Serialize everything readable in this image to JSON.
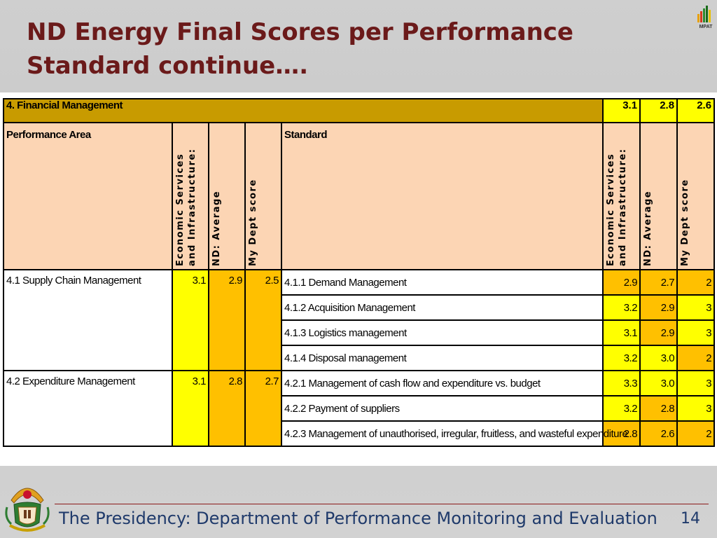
{
  "slide": {
    "title": "ND Energy Final Scores per Performance Standard continue….",
    "footer": "The Presidency: Department of Performance Monitoring and Evaluation",
    "page_number": "14",
    "logo_text": "MPAT"
  },
  "table": {
    "section": {
      "title": "4. Financial Management",
      "values": [
        "3.1",
        "2.8",
        "2.6"
      ]
    },
    "headers": {
      "performance_area": "Performance Area",
      "economic": "Economic Services and Infrastructure:",
      "nd_average": "ND: Average",
      "my_dept": "My Dept score",
      "standard": "Standard",
      "economic_2": "Economic Services and Infrastructure:",
      "nd_average_2": "ND: Average",
      "my_dept_2": "My Dept score"
    },
    "areas": [
      {
        "name": "4.1 Supply Chain Management",
        "economic": "3.1",
        "nd_average": "2.9",
        "my_dept": "2.5",
        "standards": [
          {
            "name": "4.1.1 Demand Management",
            "economic": "2.9",
            "nd_average": "2.7",
            "my_dept": "2"
          },
          {
            "name": "4.1.2 Acquisition Management",
            "economic": "3.2",
            "nd_average": "2.9",
            "my_dept": "3"
          },
          {
            "name": "4.1.3 Logistics management",
            "economic": "3.1",
            "nd_average": "2.9",
            "my_dept": "3"
          },
          {
            "name": "4.1.4 Disposal management",
            "economic": "3.2",
            "nd_average": "3.0",
            "my_dept": "2"
          }
        ]
      },
      {
        "name": "4.2 Expenditure Management",
        "economic": "3.1",
        "nd_average": "2.8",
        "my_dept": "2.7",
        "standards": [
          {
            "name": "4.2.1 Management of cash flow and expenditure vs. budget",
            "economic": "3.3",
            "nd_average": "3.0",
            "my_dept": "3"
          },
          {
            "name": "4.2.2 Payment of suppliers",
            "economic": "3.2",
            "nd_average": "2.8",
            "my_dept": "3"
          },
          {
            "name": "4.2.3 Management of unauthorised, irregular, fruitless, and wasteful expenditure",
            "economic": "2.8",
            "nd_average": "2.6",
            "my_dept": "2"
          }
        ]
      }
    ]
  },
  "colors": {
    "title": "#6b1a1a",
    "section_bar": "#c89b00",
    "header_bg": "#fcd5b4",
    "yellow": "#ffff00",
    "amber": "#ffc000",
    "footer_text": "#1f3a6b"
  },
  "icons": [
    "mpat-logo-icon",
    "coat-of-arms-icon"
  ]
}
